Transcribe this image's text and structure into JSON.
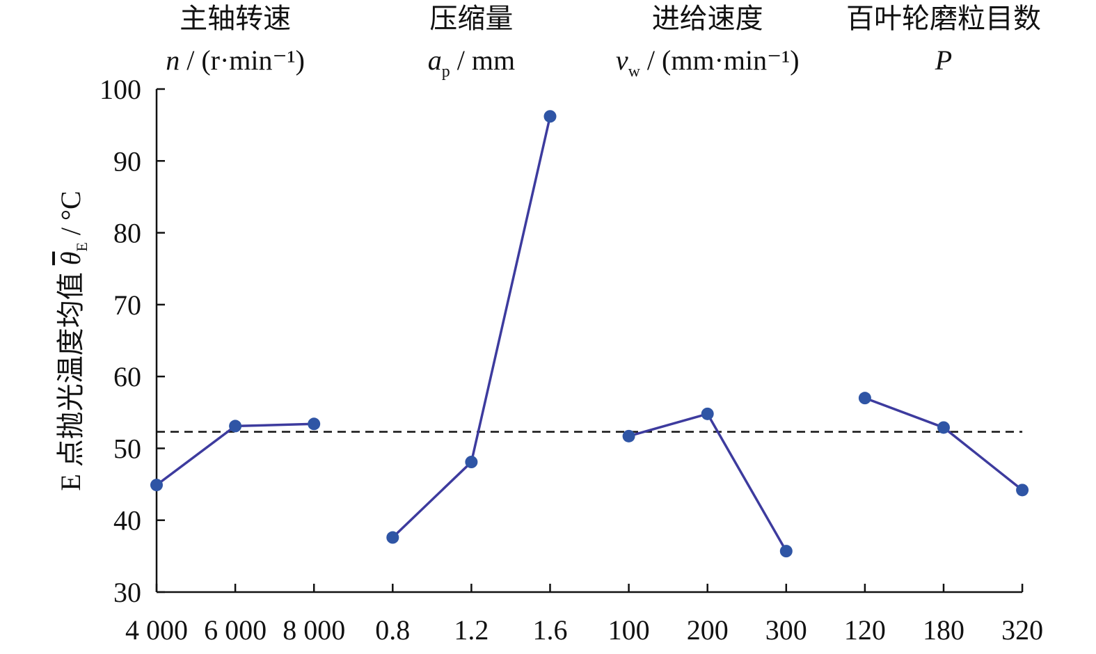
{
  "chart_data": {
    "type": "line",
    "y_label": {
      "text": "E 点抛光温度均值 ",
      "symbol": "θ",
      "subscript": "E",
      "unit": " / °C"
    },
    "ylim": [
      30,
      100
    ],
    "yticks": [
      30,
      40,
      50,
      60,
      70,
      80,
      90,
      100
    ],
    "mean_line": 52.3,
    "line_color": "#3d3b9e",
    "marker_color": "#2f55a5",
    "groups": [
      {
        "title": "主轴转速",
        "symbol": "n",
        "unit": " / (r·min⁻¹)",
        "categories": [
          "4 000",
          "6 000",
          "8 000"
        ],
        "values": [
          44.9,
          53.1,
          53.4
        ]
      },
      {
        "title": "压缩量",
        "symbol": "a",
        "subscript": "p",
        "unit": " / mm",
        "categories": [
          "0.8",
          "1.2",
          "1.6"
        ],
        "values": [
          37.6,
          48.1,
          96.2
        ]
      },
      {
        "title": "进给速度",
        "symbol": "v",
        "subscript": "w",
        "unit": " / (mm·min⁻¹)",
        "categories": [
          "100",
          "200",
          "300"
        ],
        "values": [
          51.7,
          54.8,
          35.7
        ]
      },
      {
        "title": "百叶轮磨粒目数",
        "symbol": "P",
        "categories": [
          "120",
          "180",
          "320"
        ],
        "values": [
          57.0,
          52.9,
          44.2
        ]
      }
    ]
  }
}
